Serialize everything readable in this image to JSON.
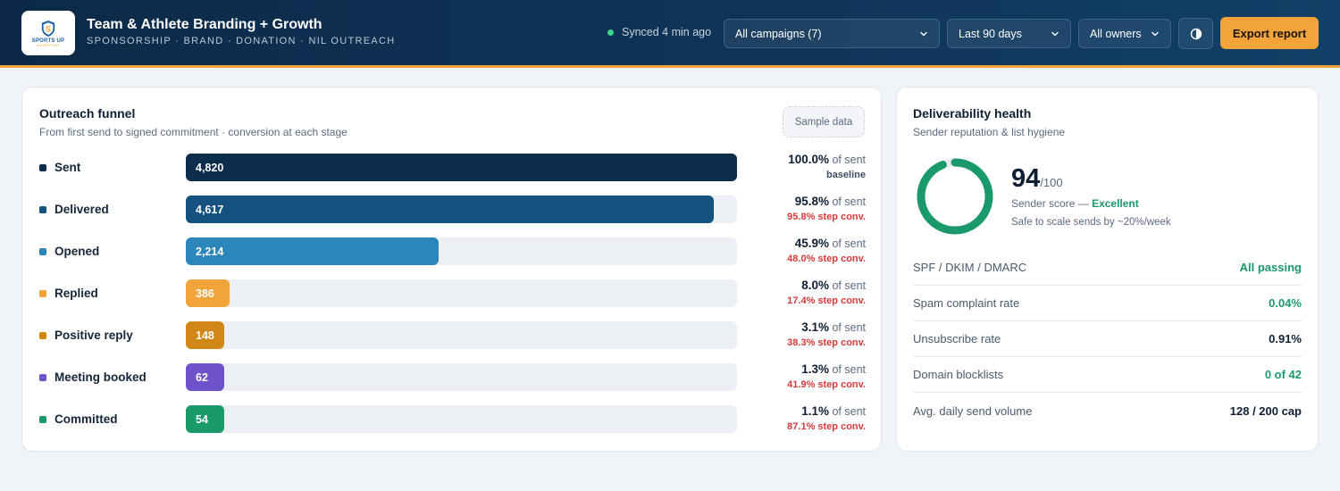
{
  "header": {
    "logo_text": "SPORTS UP",
    "logo_subtext": "MARKETING",
    "title": "Team & Athlete Branding + Growth",
    "subtitle": "SPONSORSHIP · BRAND · DONATION · NIL OUTREACH",
    "sync_status": "Synced 4 min ago",
    "filters": {
      "campaign": "All campaigns (7)",
      "range": "Last 90 days",
      "owner": "All owners"
    },
    "export_label": "Export report"
  },
  "funnel": {
    "title": "Outreach funnel",
    "subtitle": "From first send to signed commitment · conversion at each stage",
    "badge": "Sample data",
    "of_sent_suffix": "of sent",
    "stages": [
      {
        "label": "Sent",
        "count": "4,820",
        "value": 4820,
        "pct": "100.0%",
        "conv": "baseline",
        "color": "#0d2d4c",
        "conv_color": "#3d4d62"
      },
      {
        "label": "Delivered",
        "count": "4,617",
        "value": 4617,
        "pct": "95.8%",
        "conv": "95.8% step conv.",
        "color": "#14537f",
        "conv_color": "#d63a3a"
      },
      {
        "label": "Opened",
        "count": "2,214",
        "value": 2214,
        "pct": "45.9%",
        "conv": "48.0% step conv.",
        "color": "#2d86ba",
        "conv_color": "#d63a3a"
      },
      {
        "label": "Replied",
        "count": "386",
        "value": 386,
        "pct": "8.0%",
        "conv": "17.4% step conv.",
        "color": "#f2a33a",
        "conv_color": "#d63a3a"
      },
      {
        "label": "Positive reply",
        "count": "148",
        "value": 148,
        "pct": "3.1%",
        "conv": "38.3% step conv.",
        "color": "#d08716",
        "conv_color": "#d63a3a"
      },
      {
        "label": "Meeting booked",
        "count": "62",
        "value": 62,
        "pct": "1.3%",
        "conv": "41.9% step conv.",
        "color": "#6f52c9",
        "conv_color": "#d63a3a"
      },
      {
        "label": "Committed",
        "count": "54",
        "value": 54,
        "pct": "1.1%",
        "conv": "87.1% step conv.",
        "color": "#1a9a6a",
        "conv_color": "#d63a3a"
      }
    ]
  },
  "health": {
    "title": "Deliverability health",
    "subtitle": "Sender reputation & list hygiene",
    "score": "94",
    "score_max": "/100",
    "score_value": 94,
    "score_label_prefix": "Sender score —",
    "score_rating": "Excellent",
    "score_note": "Safe to scale sends by ~20%/week",
    "gauge_color": "#1a9a6a",
    "metrics": [
      {
        "label": "SPF / DKIM / DMARC",
        "value": "All passing",
        "color": "#1a9a6a"
      },
      {
        "label": "Spam complaint rate",
        "value": "0.04%",
        "color": "#1a9a6a"
      },
      {
        "label": "Unsubscribe rate",
        "value": "0.91%",
        "color": "#0f1f33"
      },
      {
        "label": "Domain blocklists",
        "value": "0 of 42",
        "color": "#1a9a6a"
      },
      {
        "label": "Avg. daily send volume",
        "value": "128 / 200 cap",
        "color": "#0f1f33"
      }
    ]
  }
}
